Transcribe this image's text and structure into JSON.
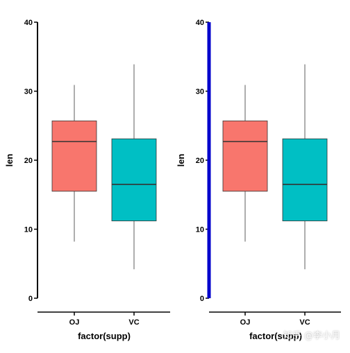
{
  "chart_data": [
    {
      "type": "box",
      "categories": [
        "OJ",
        "VC"
      ],
      "xlabel": "factor(supp)",
      "ylabel": "len",
      "ylim": [
        0,
        40
      ],
      "yticks": [
        0,
        10,
        20,
        30,
        40
      ],
      "grid": false,
      "legend": "none",
      "boxes": [
        {
          "category": "OJ",
          "min": 8.2,
          "q1": 15.5,
          "median": 22.7,
          "q3": 25.7,
          "max": 30.9,
          "fill": "#F8766D"
        },
        {
          "category": "VC",
          "min": 4.2,
          "q1": 11.2,
          "median": 16.5,
          "q3": 23.1,
          "max": 33.9,
          "fill": "#00BFC4"
        }
      ],
      "y_axis_color": "#000000"
    },
    {
      "type": "box",
      "categories": [
        "OJ",
        "VC"
      ],
      "xlabel": "factor(supp)",
      "ylabel": "len",
      "ylim": [
        0,
        40
      ],
      "yticks": [
        0,
        10,
        20,
        30,
        40
      ],
      "grid": false,
      "legend": "none",
      "boxes": [
        {
          "category": "OJ",
          "min": 8.2,
          "q1": 15.5,
          "median": 22.7,
          "q3": 25.7,
          "max": 30.9,
          "fill": "#F8766D"
        },
        {
          "category": "VC",
          "min": 4.2,
          "q1": 11.2,
          "median": 16.5,
          "q3": 23.1,
          "max": 33.9,
          "fill": "#00BFC4"
        }
      ],
      "y_axis_color": "#0000CC"
    }
  ],
  "watermark": "知乎 @李小月"
}
